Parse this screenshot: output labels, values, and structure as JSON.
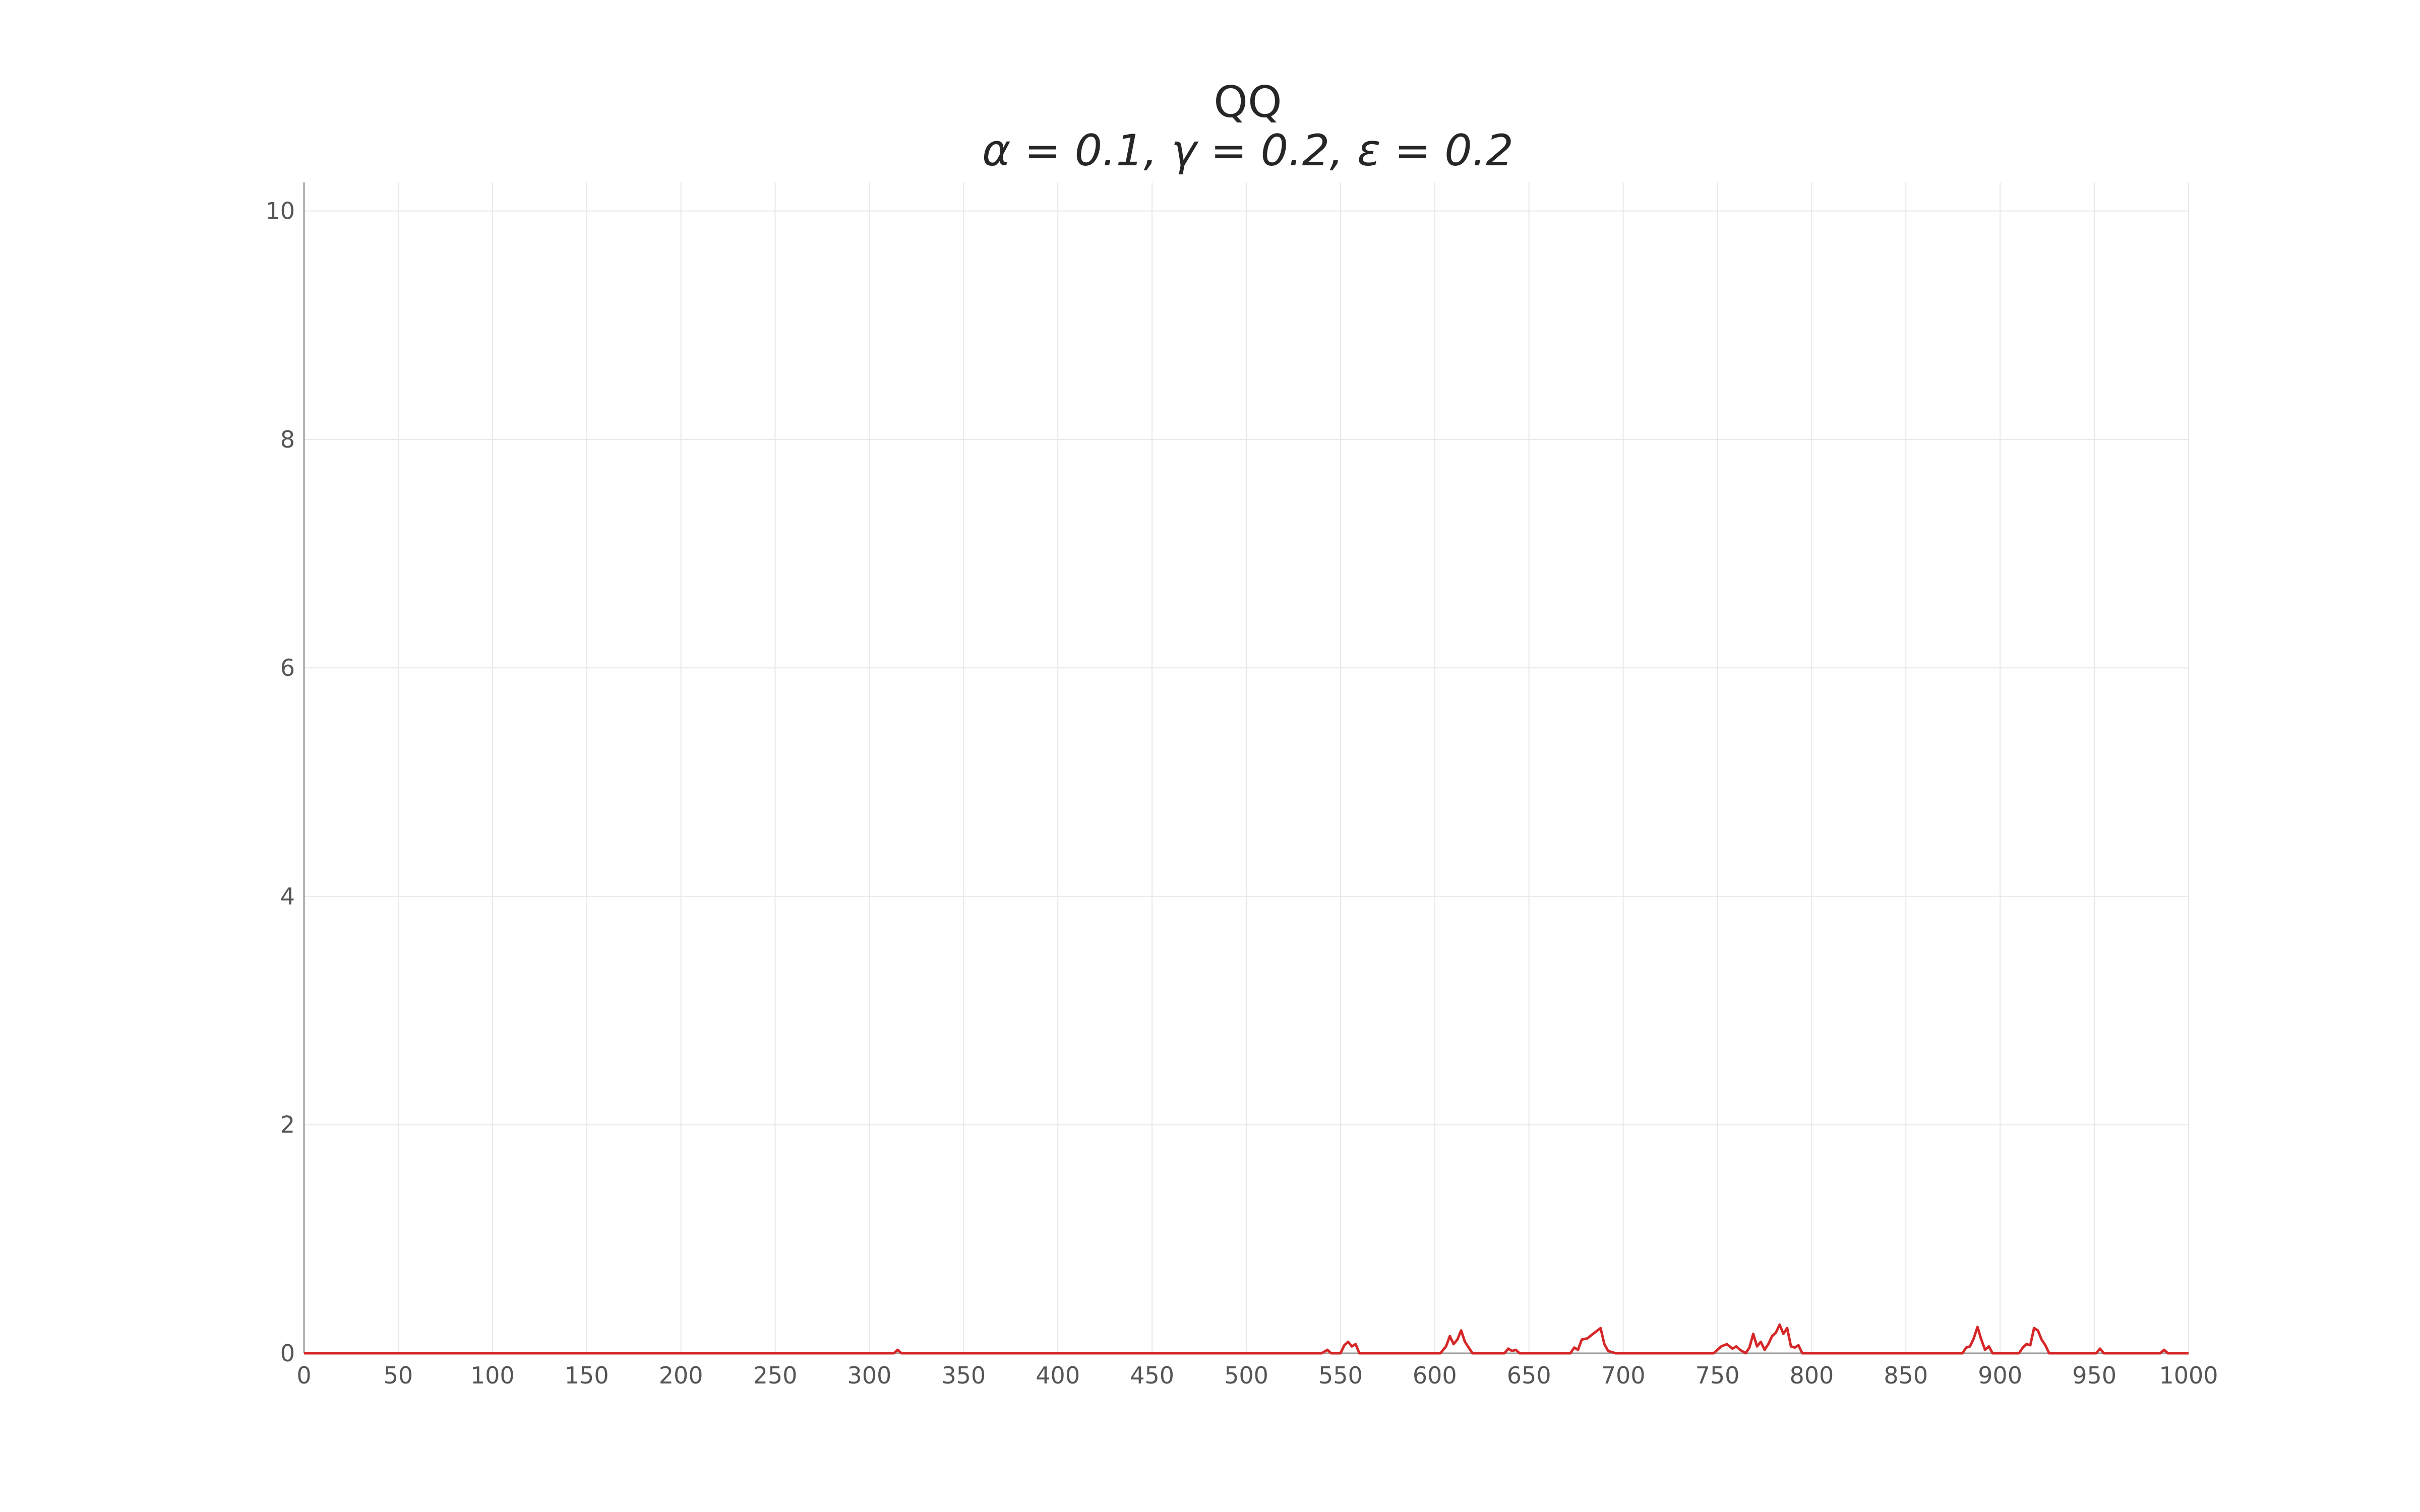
{
  "chart_data": {
    "type": "line",
    "title": "QQ",
    "subtitle": "α = 0.1, γ = 0.2, ε = 0.2",
    "xlabel": "",
    "ylabel": "",
    "xlim": [
      0,
      1000
    ],
    "ylim": [
      0,
      10.25
    ],
    "grid": true,
    "x_ticks": [
      0,
      50,
      100,
      150,
      200,
      250,
      300,
      350,
      400,
      450,
      500,
      550,
      600,
      650,
      700,
      750,
      800,
      850,
      900,
      950,
      1000
    ],
    "y_ticks": [
      0,
      2,
      4,
      6,
      8,
      10
    ],
    "series": [
      {
        "color": "#d62728",
        "points": [
          [
            0,
            0
          ],
          [
            313,
            0
          ],
          [
            315,
            0.03
          ],
          [
            317,
            0
          ],
          [
            540,
            0
          ],
          [
            543,
            0.03
          ],
          [
            545,
            0
          ],
          [
            550,
            0
          ],
          [
            552,
            0.07
          ],
          [
            554,
            0.1
          ],
          [
            556,
            0.06
          ],
          [
            558,
            0.08
          ],
          [
            560,
            0
          ],
          [
            603,
            0
          ],
          [
            606,
            0.06
          ],
          [
            608,
            0.15
          ],
          [
            610,
            0.08
          ],
          [
            612,
            0.12
          ],
          [
            614,
            0.2
          ],
          [
            616,
            0.1
          ],
          [
            618,
            0.05
          ],
          [
            620,
            0
          ],
          [
            637,
            0
          ],
          [
            639,
            0.04
          ],
          [
            641,
            0.02
          ],
          [
            643,
            0.03
          ],
          [
            645,
            0
          ],
          [
            672,
            0
          ],
          [
            674,
            0.05
          ],
          [
            676,
            0.03
          ],
          [
            678,
            0.12
          ],
          [
            681,
            0.13
          ],
          [
            684,
            0.17
          ],
          [
            688,
            0.22
          ],
          [
            690,
            0.08
          ],
          [
            692,
            0.02
          ],
          [
            696,
            0
          ],
          [
            748,
            0
          ],
          [
            750,
            0.03
          ],
          [
            752,
            0.06
          ],
          [
            755,
            0.08
          ],
          [
            758,
            0.04
          ],
          [
            760,
            0.06
          ],
          [
            762,
            0.03
          ],
          [
            765,
            0
          ],
          [
            767,
            0.05
          ],
          [
            769,
            0.17
          ],
          [
            771,
            0.06
          ],
          [
            773,
            0.1
          ],
          [
            775,
            0.03
          ],
          [
            777,
            0.08
          ],
          [
            779,
            0.15
          ],
          [
            781,
            0.18
          ],
          [
            783,
            0.25
          ],
          [
            785,
            0.17
          ],
          [
            787,
            0.22
          ],
          [
            789,
            0.06
          ],
          [
            791,
            0.05
          ],
          [
            793,
            0.07
          ],
          [
            795,
            0
          ],
          [
            880,
            0
          ],
          [
            882,
            0.05
          ],
          [
            884,
            0.06
          ],
          [
            886,
            0.13
          ],
          [
            888,
            0.23
          ],
          [
            890,
            0.12
          ],
          [
            892,
            0.03
          ],
          [
            894,
            0.06
          ],
          [
            896,
            0
          ],
          [
            910,
            0
          ],
          [
            912,
            0.05
          ],
          [
            914,
            0.08
          ],
          [
            916,
            0.07
          ],
          [
            918,
            0.22
          ],
          [
            920,
            0.2
          ],
          [
            922,
            0.12
          ],
          [
            924,
            0.07
          ],
          [
            926,
            0
          ],
          [
            951,
            0
          ],
          [
            953,
            0.04
          ],
          [
            955,
            0
          ],
          [
            985,
            0
          ],
          [
            987,
            0.03
          ],
          [
            989,
            0
          ],
          [
            1000,
            0
          ]
        ]
      }
    ]
  }
}
